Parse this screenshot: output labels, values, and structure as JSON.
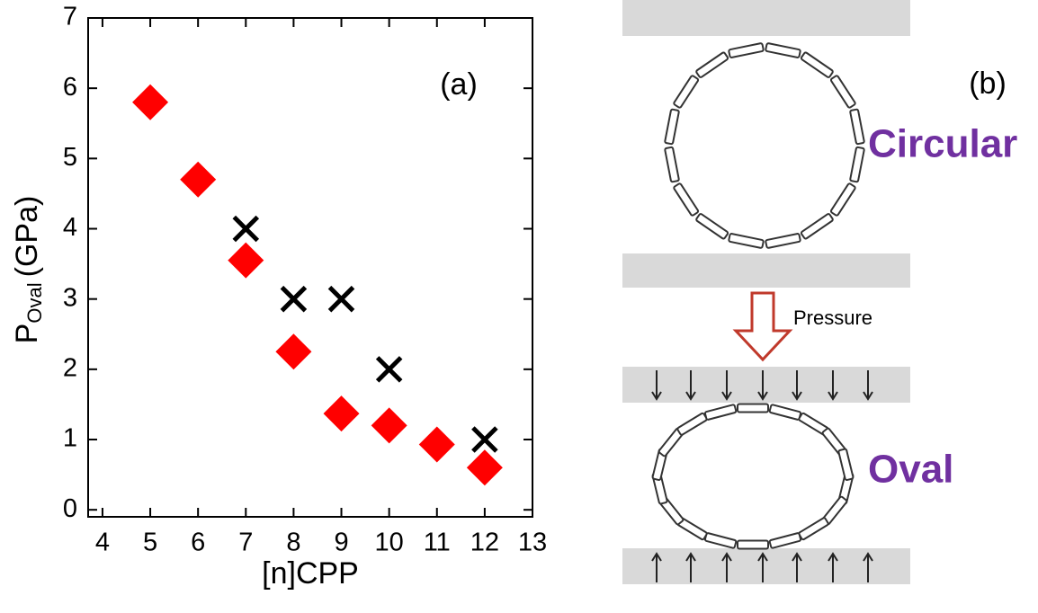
{
  "chart_data": {
    "type": "scatter",
    "panel_label": "(a)",
    "xlabel": "[n]CPP",
    "ylabel": "P",
    "ylabel_sub": "Oval",
    "ylabel_unit": "(GPa)",
    "xlim": [
      3.7,
      13
    ],
    "ylim": [
      -0.1,
      7
    ],
    "xticks": [
      4,
      5,
      6,
      7,
      8,
      9,
      10,
      11,
      12,
      13
    ],
    "yticks": [
      0,
      1,
      2,
      3,
      4,
      5,
      6,
      7
    ],
    "series": [
      {
        "color": "#ff0000",
        "marker": "diamond",
        "x": [
          5,
          6,
          7,
          8,
          9,
          10,
          11,
          12
        ],
        "values": [
          5.8,
          4.7,
          3.55,
          2.25,
          1.37,
          1.2,
          0.93,
          0.6
        ]
      },
      {
        "color": "#000000",
        "marker": "cross",
        "x": [
          7,
          8,
          9,
          10,
          12
        ],
        "values": [
          4,
          3,
          3,
          2,
          1
        ]
      }
    ]
  },
  "diagram": {
    "label": "(b)",
    "top_label": "Circular",
    "arrow_label": "Pressure",
    "bottom_label": "Oval"
  }
}
